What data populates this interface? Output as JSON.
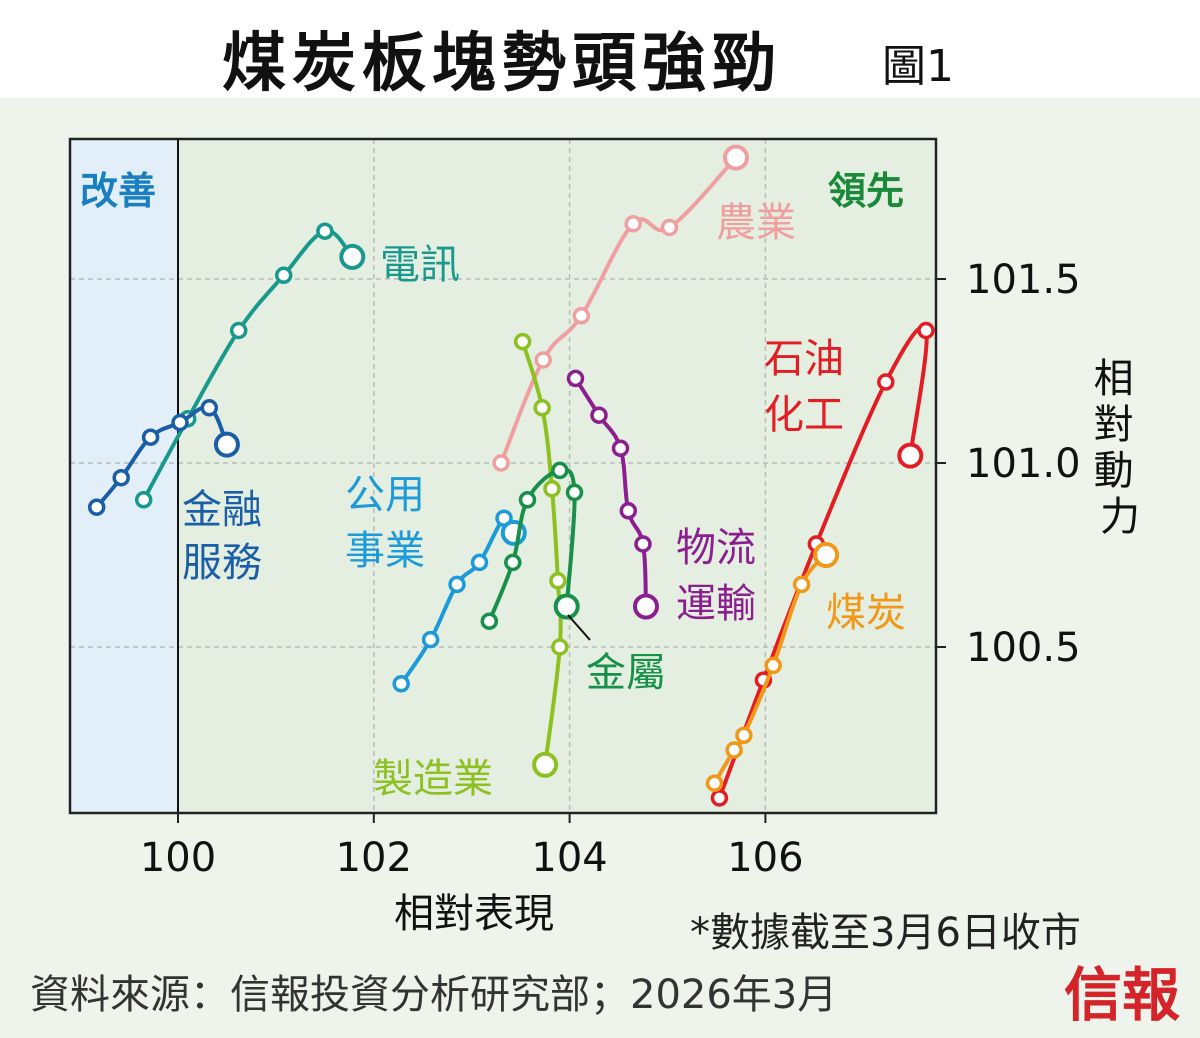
{
  "title": "煤炭板塊勢頭強勁",
  "figure_tag": "圖1",
  "footnote": "*數據截至3月6日收市",
  "source": "資料來源：信報投資分析研究部；2026年3月",
  "brand": "信報",
  "colors": {
    "plot_bg": "#e5efe1",
    "improving_bg": "#e2eff8",
    "improving_label": "#1a7fc1",
    "leading_label": "#1a8a3a"
  },
  "chart_data": {
    "type": "line",
    "xlabel": "相對表現",
    "ylabel": "相對動力",
    "xlim": [
      98.9,
      107.8
    ],
    "ylim": [
      100.05,
      101.9
    ],
    "xticks": [
      100,
      102,
      104,
      106
    ],
    "yticks": [
      100.5,
      101.0,
      101.5
    ],
    "quadrant_labels": {
      "improving": "改善",
      "leading": "領先"
    },
    "series": [
      {
        "name": "電訊",
        "color": "#19998e",
        "points": [
          [
            99.65,
            100.9
          ],
          [
            100.1,
            101.12
          ],
          [
            100.62,
            101.36
          ],
          [
            101.08,
            101.51
          ],
          [
            101.5,
            101.63
          ],
          [
            101.78,
            101.56
          ]
        ]
      },
      {
        "name": "金融服務",
        "color": "#1a5ea8",
        "points": [
          [
            99.17,
            100.88
          ],
          [
            99.42,
            100.96
          ],
          [
            99.72,
            101.07
          ],
          [
            100.02,
            101.11
          ],
          [
            100.32,
            101.15
          ],
          [
            100.5,
            101.05
          ]
        ]
      },
      {
        "name": "農業",
        "color": "#ef9fa0",
        "points": [
          [
            103.3,
            101.0
          ],
          [
            103.73,
            101.28
          ],
          [
            104.12,
            101.4
          ],
          [
            104.65,
            101.65
          ],
          [
            105.02,
            101.64
          ],
          [
            105.7,
            101.83
          ]
        ]
      },
      {
        "name": "公用事業",
        "color": "#1d9ad8",
        "points": [
          [
            102.28,
            100.4
          ],
          [
            102.58,
            100.52
          ],
          [
            102.85,
            100.67
          ],
          [
            103.08,
            100.73
          ],
          [
            103.33,
            100.85
          ],
          [
            103.43,
            100.81
          ]
        ]
      },
      {
        "name": "製造業",
        "color": "#8dc021",
        "points": [
          [
            103.52,
            101.33
          ],
          [
            103.72,
            101.15
          ],
          [
            103.82,
            100.93
          ],
          [
            103.88,
            100.68
          ],
          [
            103.9,
            100.5
          ],
          [
            103.75,
            100.18
          ]
        ]
      },
      {
        "name": "金屬",
        "color": "#17904a",
        "points": [
          [
            103.18,
            100.57
          ],
          [
            103.42,
            100.73
          ],
          [
            103.57,
            100.9
          ],
          [
            103.9,
            100.98
          ],
          [
            104.05,
            100.92
          ],
          [
            103.97,
            100.61
          ]
        ]
      },
      {
        "name": "物流運輸",
        "color": "#8c1f8f",
        "points": [
          [
            104.06,
            101.23
          ],
          [
            104.3,
            101.13
          ],
          [
            104.52,
            101.04
          ],
          [
            104.6,
            100.87
          ],
          [
            104.75,
            100.78
          ],
          [
            104.78,
            100.61
          ]
        ]
      },
      {
        "name": "石油化工",
        "color": "#e31d24",
        "points": [
          [
            105.53,
            100.09
          ],
          [
            105.98,
            100.41
          ],
          [
            106.52,
            100.78
          ],
          [
            107.23,
            101.22
          ],
          [
            107.64,
            101.36
          ],
          [
            107.48,
            101.02
          ]
        ]
      },
      {
        "name": "煤炭",
        "color": "#f09819",
        "points": [
          [
            105.48,
            100.13
          ],
          [
            105.68,
            100.22
          ],
          [
            105.78,
            100.26
          ],
          [
            106.08,
            100.45
          ],
          [
            106.37,
            100.67
          ],
          [
            106.62,
            100.75
          ]
        ]
      }
    ]
  },
  "labels": {
    "telecom": "電訊",
    "financial_1": "金融",
    "financial_2": "服務",
    "agri": "農業",
    "utilities_1": "公用",
    "utilities_2": "事業",
    "manufacturing": "製造業",
    "metals": "金屬",
    "logistics_1": "物流",
    "logistics_2": "運輸",
    "petrochem_1": "石油",
    "petrochem_2": "化工",
    "coal": "煤炭"
  }
}
